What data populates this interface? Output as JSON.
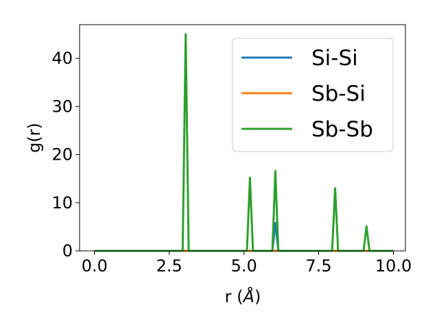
{
  "chart_data": {
    "type": "line",
    "title": "",
    "xlabel": "r (",
    "xlabel_unit": "Å",
    "xlabel_close": ")",
    "ylabel": "g(r)",
    "xlim": [
      -0.5,
      10.4
    ],
    "ylim": [
      0,
      47
    ],
    "xticks": [
      0.0,
      2.5,
      5.0,
      7.5,
      10.0
    ],
    "xtick_labels": [
      "0.0",
      "2.5",
      "5.0",
      "7.5",
      "10.0"
    ],
    "yticks": [
      0,
      10,
      20,
      30,
      40
    ],
    "ytick_labels": [
      "0",
      "10",
      "20",
      "30",
      "40"
    ],
    "grid": false,
    "legend_position": "top-right",
    "series": [
      {
        "name": "Si-Si",
        "color": "#1f77b4",
        "x": [
          0.0,
          5.95,
          6.05,
          6.15,
          10.0
        ],
        "y": [
          0,
          0,
          5.8,
          0,
          0
        ]
      },
      {
        "name": "Sb-Si",
        "color": "#ff7f0e",
        "x": [
          0.0,
          10.0
        ],
        "y": [
          0,
          0
        ]
      },
      {
        "name": "Sb-Sb",
        "color": "#2ca02c",
        "x": [
          0.0,
          2.95,
          3.05,
          3.15,
          5.1,
          5.2,
          5.3,
          5.95,
          6.05,
          6.15,
          7.95,
          8.05,
          8.15,
          9.0,
          9.1,
          9.2,
          10.0
        ],
        "y": [
          0,
          0,
          45,
          0,
          0,
          15.2,
          0,
          0,
          16.6,
          0,
          0,
          13,
          0,
          0,
          5.1,
          0,
          0
        ]
      }
    ]
  }
}
